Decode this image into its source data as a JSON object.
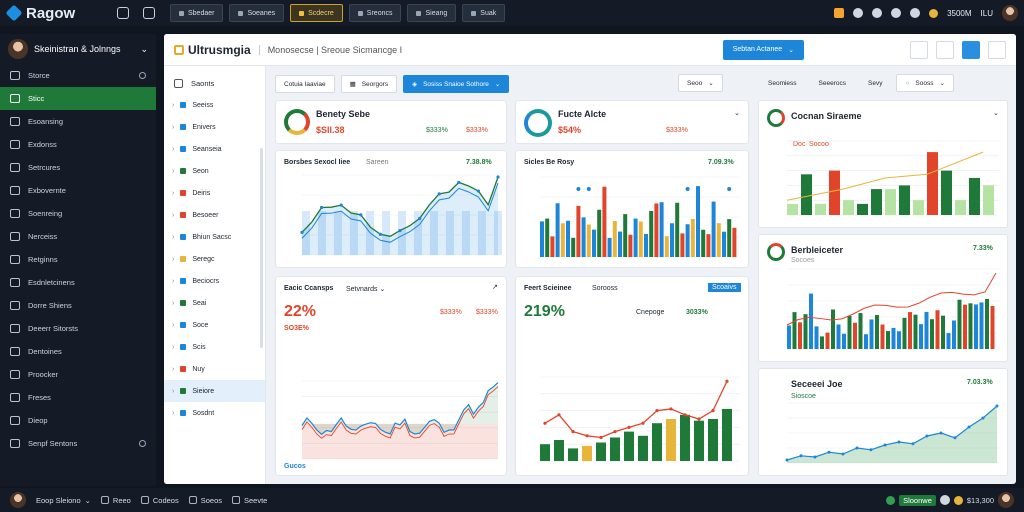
{
  "topbar": {
    "app_name": "Ragow",
    "tabs": [
      "Sbedaer",
      "Soeanes",
      "Scdecre",
      "Sreoncs",
      "Sieang",
      "Suak"
    ],
    "active_tab": 2,
    "balance": "3500M",
    "user_short": "ILU"
  },
  "sidebar": {
    "user_name": "Skeinistran & Jolnngs",
    "items": [
      "Storce",
      "Sticc",
      "Esoansing",
      "Exdonss",
      "Setrcures",
      "Exbovernte",
      "Soenreing",
      "Nerceiss",
      "Retginns",
      "Esdnletcinens",
      "Dorre Shiens",
      "Deeerr Sitorsts",
      "Dentoines",
      "Proocker",
      "Freses",
      "Dieop",
      "Senpf Sentons"
    ],
    "active": 1
  },
  "bottombar": {
    "left": [
      "Eoop Sleiono",
      "Reeo",
      "Codeos",
      "Soeos",
      "Seevte"
    ],
    "right_badge": "Sloonwe",
    "right_value": "$13,300"
  },
  "main": {
    "title": "Ultrusmgia",
    "subtitle": "Monosecse | Sreoue Sicmancge I",
    "header_button": "Sebtan Actanee"
  },
  "tree": {
    "header": "Saonts",
    "items": [
      {
        "label": "Seeiss",
        "color": "#1d86d8"
      },
      {
        "label": "Enivers",
        "color": "#1d86d8"
      },
      {
        "label": "Seanseia",
        "color": "#1d86d8"
      },
      {
        "label": "Seon",
        "color": "#1f7a3a"
      },
      {
        "label": "Deiris",
        "color": "#e0452b"
      },
      {
        "label": "Besoeer",
        "color": "#e0452b"
      },
      {
        "label": "Bhiun Sacsc",
        "color": "#1d86d8"
      },
      {
        "label": "Seregc",
        "color": "#e8b53b"
      },
      {
        "label": "Beciocrs",
        "color": "#1d86d8"
      },
      {
        "label": "Seai",
        "color": "#1f7a3a"
      },
      {
        "label": "Soce",
        "color": "#1d86d8"
      },
      {
        "label": "Scis",
        "color": "#1d86d8"
      },
      {
        "label": "Nuy",
        "color": "#e0452b"
      },
      {
        "label": "Sieiore",
        "color": "#1f7a3a"
      },
      {
        "label": "Sosdnt",
        "color": "#1d86d8"
      }
    ],
    "active": 13
  },
  "toolbar": {
    "tab1": "Cotuia Iaaviae",
    "tab2": "Seorgors",
    "dropdown": "Sosiss Snaioe Sothore",
    "right": [
      "Seoo",
      "Seomiess",
      "Seeerocs",
      "Sevy",
      "Sooss"
    ]
  },
  "cards": {
    "kpi1": {
      "title": "Benety Sebe",
      "value": "$Sll.38",
      "delta": "$333%",
      "delta2": "$333%"
    },
    "kpi2": {
      "title": "Fucte Alcte",
      "value": "$54%",
      "delta": "$333%"
    },
    "chart1": {
      "title": "Borsbes Sexocl Iiee",
      "subtitle": "Sareen",
      "value": "7.38.8%"
    },
    "chart2": {
      "title": "Sicles Be Rosy",
      "value": "7.09.3%"
    },
    "chart3": {
      "title": "Eacic Ccansps",
      "dropdown": "Setvnards",
      "big": "22%",
      "sub": "SO3E%",
      "v1": "$333%",
      "v2": "$333%"
    },
    "chart4": {
      "title": "Feert Scieinee",
      "dropdown": "Sorooss",
      "badge": "Scoaivs",
      "big": "219%",
      "v1": "Cnepoge",
      "v2": "3033%"
    },
    "right1": {
      "title": "Cocnan Siraeme",
      "tag": "Doc",
      "tag2": "Socoo"
    },
    "right2": {
      "title": "Berbleiceter",
      "sub": "Socoes",
      "value": "7.33%"
    },
    "right3": {
      "title": "Seceeei Joe",
      "tag": "Sioscoe",
      "value": "7.03.3%"
    },
    "legend4": "Gucos"
  },
  "colors": {
    "green": "#1f7a3a",
    "blue": "#1d86d8",
    "red": "#e0452b",
    "orange": "#e8b53b",
    "light_green": "#b5e3a3"
  }
}
